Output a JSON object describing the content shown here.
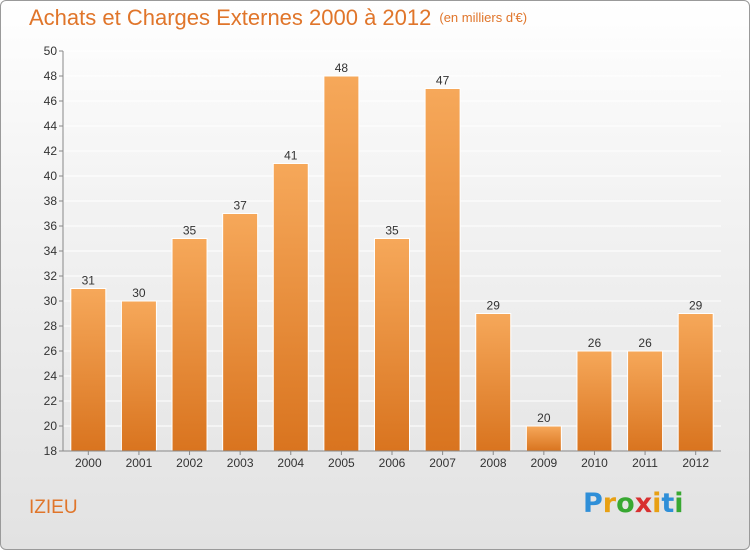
{
  "header": {
    "title": "Achats et Charges Externes 2000 à 2012",
    "subtitle": "(en milliers d'€)"
  },
  "footer": {
    "location": "IZIEU",
    "brand_letters": [
      "P",
      "r",
      "o",
      "x",
      "i",
      "t",
      "i"
    ],
    "brand_colors": [
      "#2f8fd8",
      "#e8a013",
      "#38a832",
      "#d83030",
      "#e8a013",
      "#2f8fd8",
      "#38a832"
    ]
  },
  "chart_data": {
    "type": "bar",
    "categories": [
      "2000",
      "2001",
      "2002",
      "2003",
      "2004",
      "2005",
      "2006",
      "2007",
      "2008",
      "2009",
      "2010",
      "2011",
      "2012"
    ],
    "values": [
      31,
      30,
      35,
      37,
      41,
      48,
      35,
      47,
      29,
      20,
      26,
      26,
      29
    ],
    "ylim": [
      18,
      50
    ],
    "yticks": [
      18,
      20,
      22,
      24,
      26,
      28,
      30,
      32,
      34,
      36,
      38,
      40,
      42,
      44,
      46,
      48,
      50
    ],
    "grid": true,
    "colors": {
      "bar_light": "#f6a85a",
      "bar_dark": "#d9741f",
      "grid": "#ffffff",
      "axis": "#888888"
    }
  }
}
